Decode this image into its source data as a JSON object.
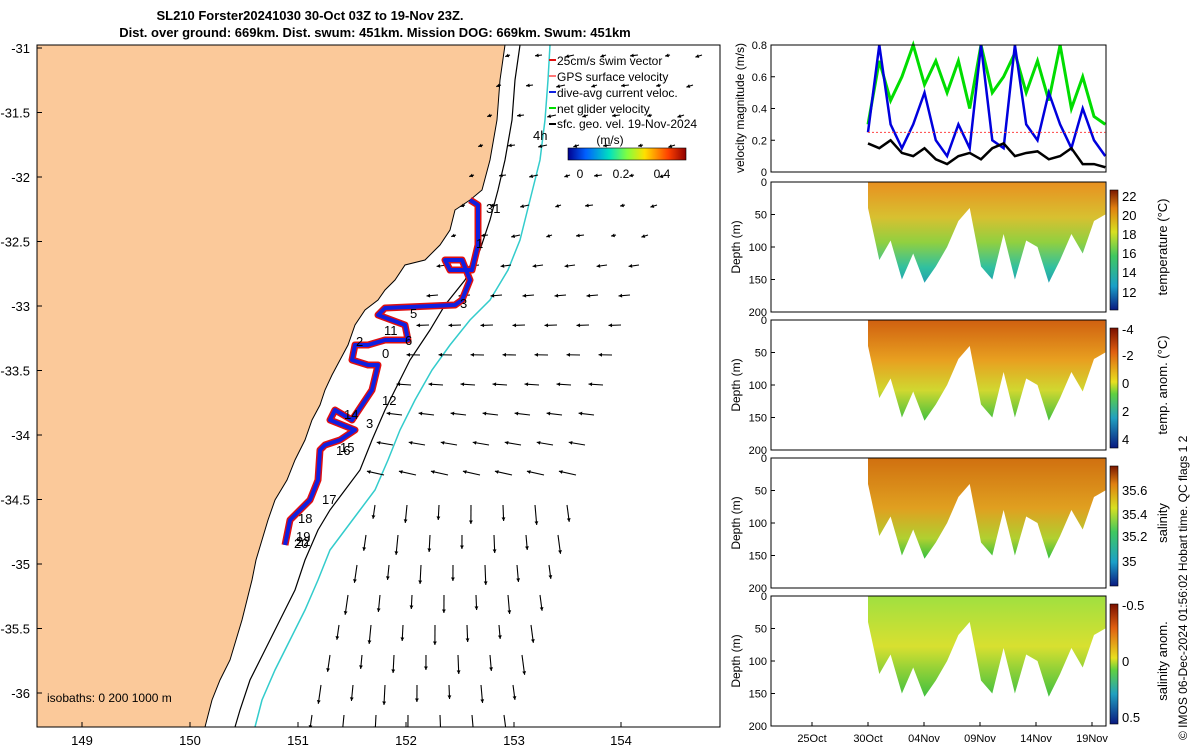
{
  "title": {
    "line1": "SL210 Forster20241030 30-Oct 03Z to 19-Nov 23Z.",
    "line2": "Dist. over ground: 669km. Dist. swum: 451km. Mission DOG: 669km. Swum: 451km"
  },
  "side_note": "© IMOS 06-Dec-2024 01:56:02 Hobart time. QC flags 1  2",
  "map": {
    "lon_ticks": [
      "149",
      "150",
      "151",
      "152",
      "153",
      "154"
    ],
    "lat_ticks": [
      "-31",
      "-31.5",
      "-32",
      "-32.5",
      "-33",
      "-33.5",
      "-34",
      "-34.5",
      "-35",
      "-35.5",
      "-36"
    ],
    "legend": [
      "25cm/s swim vector",
      "GPS surface velocity",
      "dive-avg current veloc.",
      "net glider velocity",
      "sfc. geo. vel. 19-Nov-2024"
    ],
    "colorbar_label": "(m/s)",
    "colorbar_ticks": [
      "0",
      "0.2",
      "0.4"
    ],
    "isobaths_text": "isobaths: 0   200  1000 m",
    "day_labels": [
      "31",
      "1",
      "3",
      "5",
      "6",
      "0",
      "11",
      "2",
      "12",
      "3",
      "14",
      "15",
      "16",
      "17",
      "18",
      "19",
      "20",
      "22",
      "4h"
    ],
    "colors": {
      "land": "#fbc99a",
      "ocean": "#ffffff",
      "isobath": "#000000",
      "isobath_1000": "#33cccc",
      "track_outer": "#e01010",
      "track_inner": "#1020e0"
    }
  },
  "velocity_panel": {
    "ylabel": "velocity magnitude (m/s)",
    "yticks": [
      "0",
      "0.2",
      "0.4",
      "0.6",
      "0.8"
    ],
    "colors": {
      "gps": "#00dd00",
      "dive_avg": "#0000dd",
      "net": "#000000",
      "swim": "#ff4444"
    }
  },
  "depth_panels": [
    {
      "ylabel": "Depth (m)",
      "yticks": [
        "0",
        "50",
        "100",
        "150",
        "200"
      ],
      "cbar_label": "temperature (°C)",
      "cbar_ticks": [
        "12",
        "14",
        "16",
        "18",
        "20",
        "22"
      ]
    },
    {
      "ylabel": "Depth (m)",
      "yticks": [
        "0",
        "50",
        "100",
        "150",
        "200"
      ],
      "cbar_label": "temp. anom. (°C)",
      "cbar_ticks": [
        "-4",
        "-2",
        "0",
        "2",
        "4"
      ]
    },
    {
      "ylabel": "Depth (m)",
      "yticks": [
        "0",
        "50",
        "100",
        "150",
        "200"
      ],
      "cbar_label": "salinity",
      "cbar_ticks": [
        "35",
        "35.2",
        "35.4",
        "35.6"
      ]
    },
    {
      "ylabel": "Depth (m)",
      "yticks": [
        "0",
        "50",
        "100",
        "150",
        "200"
      ],
      "cbar_label": "salinity anom.",
      "cbar_ticks": [
        "-0.5",
        "0",
        "0.5"
      ]
    }
  ],
  "time_ticks": [
    "25Oct",
    "30Oct",
    "04Nov",
    "09Nov",
    "14Nov",
    "19Nov"
  ],
  "chart_data": [
    {
      "type": "line",
      "title": "velocity magnitude",
      "ylabel": "velocity magnitude (m/s)",
      "ylim": [
        0,
        0.8
      ],
      "x_days_from_30Oct": [
        0,
        1,
        2,
        3,
        4,
        5,
        6,
        7,
        8,
        9,
        10,
        11,
        12,
        13,
        14,
        15,
        16,
        17,
        18,
        19,
        20,
        21
      ],
      "series": [
        {
          "name": "net glider velocity",
          "values": [
            0.18,
            0.15,
            0.2,
            0.12,
            0.1,
            0.15,
            0.08,
            0.05,
            0.1,
            0.12,
            0.08,
            0.15,
            0.18,
            0.1,
            0.12,
            0.13,
            0.08,
            0.1,
            0.15,
            0.05,
            0.05,
            0.03
          ]
        },
        {
          "name": "dive-avg current veloc.",
          "values": [
            0.25,
            0.8,
            0.3,
            0.15,
            0.3,
            0.5,
            0.2,
            0.1,
            0.3,
            0.15,
            0.8,
            0.2,
            0.15,
            0.8,
            0.3,
            0.2,
            0.5,
            0.3,
            0.15,
            0.4,
            0.2,
            0.1
          ]
        },
        {
          "name": "GPS surface velocity",
          "values": [
            0.3,
            0.7,
            0.45,
            0.6,
            0.8,
            0.55,
            0.7,
            0.5,
            0.7,
            0.4,
            0.8,
            0.5,
            0.6,
            0.75,
            0.5,
            0.7,
            0.45,
            0.8,
            0.4,
            0.6,
            0.35,
            0.3
          ]
        }
      ]
    },
    {
      "type": "heatmap",
      "title": "temperature",
      "ylabel": "Depth (m)",
      "ylim": [
        200,
        0
      ],
      "colorbar": "temperature (°C)",
      "clim": [
        11,
        23
      ],
      "x_days_from_30Oct": [
        0,
        1,
        2,
        3,
        4,
        5,
        6,
        7,
        8,
        9,
        10,
        11,
        12,
        13,
        14,
        15,
        16,
        17,
        18,
        19,
        20,
        21
      ],
      "max_depth_m": [
        40,
        120,
        90,
        150,
        110,
        155,
        130,
        100,
        60,
        40,
        130,
        150,
        80,
        150,
        90,
        100,
        155,
        120,
        80,
        110,
        60,
        50
      ],
      "surface_value": 21,
      "deep_value": 16
    },
    {
      "type": "heatmap",
      "title": "temp. anom.",
      "ylabel": "Depth (m)",
      "ylim": [
        200,
        0
      ],
      "colorbar": "temp. anom. (°C)",
      "clim": [
        -4,
        4
      ],
      "max_depth_m": [
        40,
        120,
        90,
        150,
        110,
        155,
        130,
        100,
        60,
        40,
        130,
        150,
        80,
        150,
        90,
        100,
        155,
        120,
        80,
        110,
        60,
        50
      ]
    },
    {
      "type": "heatmap",
      "title": "salinity",
      "ylabel": "Depth (m)",
      "ylim": [
        200,
        0
      ],
      "colorbar": "salinity",
      "clim": [
        34.85,
        35.75
      ],
      "max_depth_m": [
        40,
        120,
        90,
        150,
        110,
        155,
        130,
        100,
        60,
        40,
        130,
        150,
        80,
        150,
        90,
        100,
        155,
        120,
        80,
        110,
        60,
        50
      ]
    },
    {
      "type": "heatmap",
      "title": "salinity anom.",
      "ylabel": "Depth (m)",
      "ylim": [
        200,
        0
      ],
      "colorbar": "salinity anom.",
      "clim": [
        -0.5,
        0.5
      ],
      "max_depth_m": [
        40,
        120,
        90,
        150,
        110,
        155,
        130,
        100,
        60,
        40,
        130,
        150,
        80,
        150,
        90,
        100,
        155,
        120,
        80,
        110,
        60,
        50
      ]
    }
  ]
}
